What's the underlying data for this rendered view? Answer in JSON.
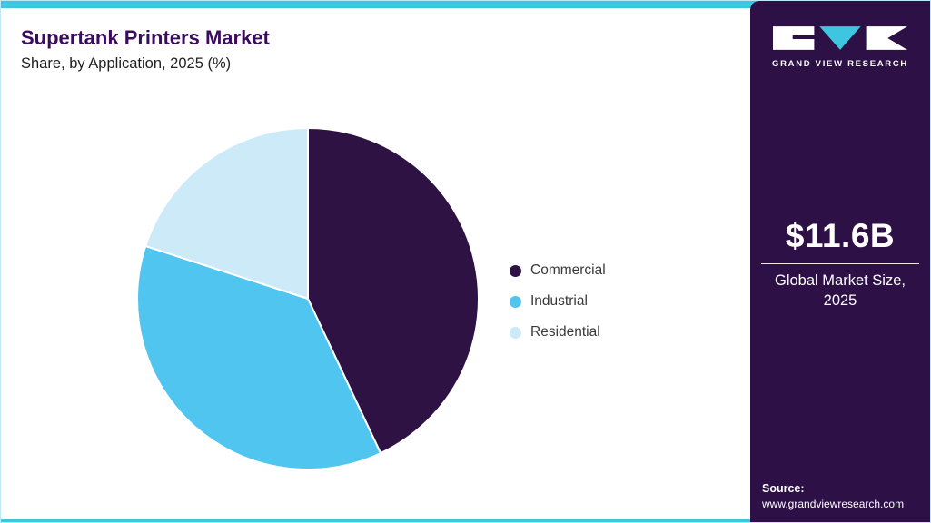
{
  "colors": {
    "accent": "#3EC6E0",
    "sidebar_bg": "#2C1046",
    "title": "#3A0B5E",
    "subtitle_text": "#1F1F1F",
    "legend_text": "#3A3A3A"
  },
  "header": {
    "title": "Supertank Printers Market",
    "subtitle": "Share, by Application, 2025 (%)"
  },
  "chart_data": {
    "type": "pie",
    "title": "Supertank Printers Market Share, by Application, 2025 (%)",
    "units": "%",
    "start_angle_deg": 0,
    "direction": "clockwise",
    "legend_position": "right",
    "segments": [
      {
        "label": "Commercial",
        "value": 43,
        "color": "#2E1243"
      },
      {
        "label": "Industrial",
        "value": 37,
        "color": "#4FC5EF"
      },
      {
        "label": "Residential",
        "value": 20,
        "color": "#CDEAF9"
      }
    ]
  },
  "sidebar": {
    "logo_text": "GRAND VIEW RESEARCH",
    "market_size_value": "$11.6B",
    "market_size_caption_line1": "Global Market Size,",
    "market_size_caption_line2": "2025",
    "source_label": "Source:",
    "source_url": "www.grandviewresearch.com"
  }
}
